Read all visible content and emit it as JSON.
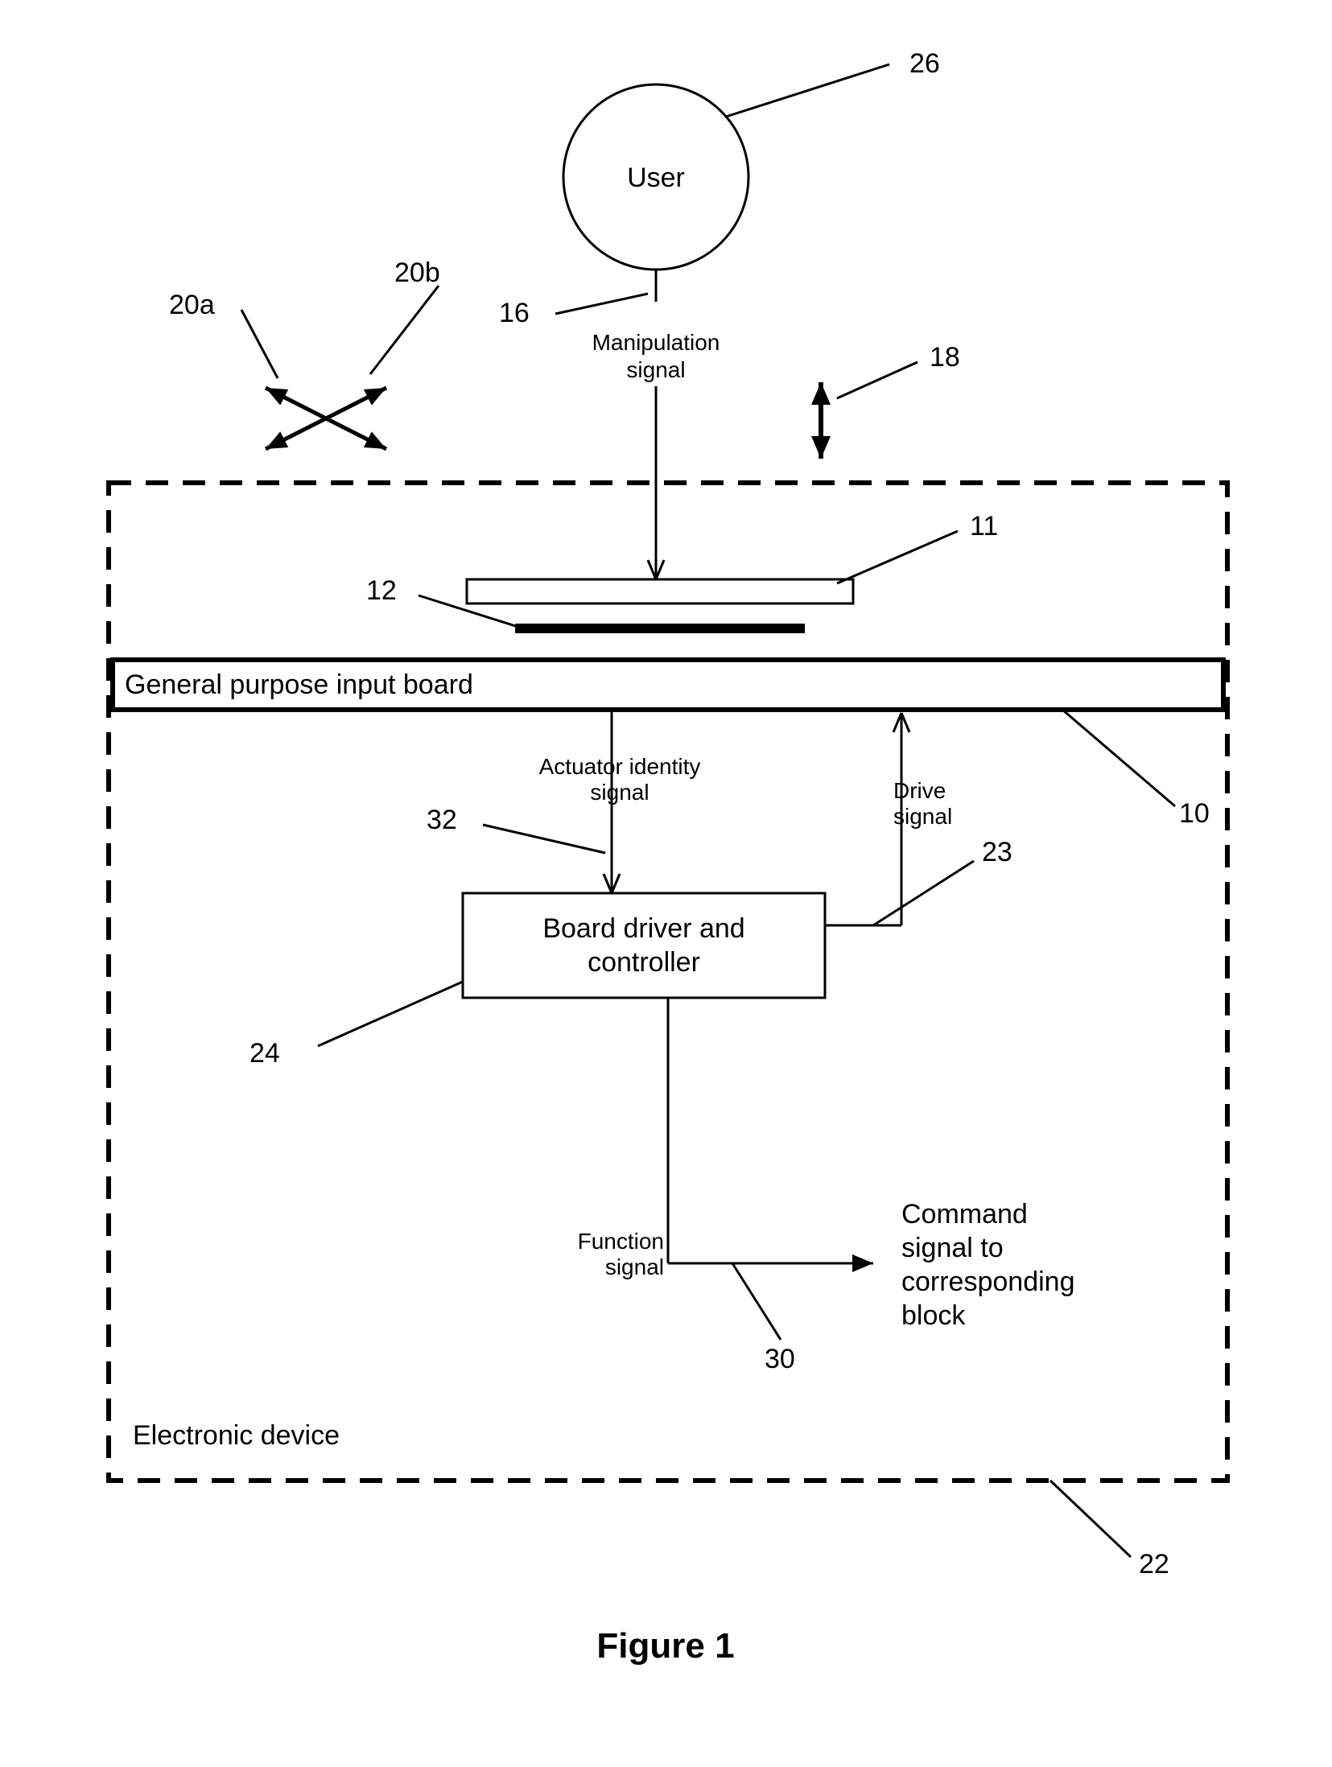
{
  "figure": {
    "title": "Figure 1",
    "title_fontsize": 44,
    "title_fontweight": "bold",
    "font_family": "Arial, Helvetica, sans-serif",
    "background": "#ffffff",
    "stroke": "#000000",
    "node_label_fontsize": 34,
    "edge_label_fontsize": 28,
    "ref_label_fontsize": 34
  },
  "nodes": {
    "user": {
      "label": "User",
      "ref": "26"
    },
    "board": {
      "label": "General purpose input board",
      "ref": "10"
    },
    "controller": {
      "label": "Board driver and controller",
      "ref": "24"
    },
    "device": {
      "label": "Electronic device",
      "ref": "22"
    },
    "command": {
      "label_lines": [
        "Command",
        "signal to",
        "corresponding",
        "block"
      ]
    }
  },
  "refs": {
    "r11": "11",
    "r12": "12",
    "r16": "16",
    "r18": "18",
    "r20a": "20a",
    "r20b": "20b",
    "r23": "23",
    "r30": "30",
    "r32": "32"
  },
  "edges": {
    "manipulation": {
      "label_lines": [
        "Manipulation",
        "signal"
      ]
    },
    "actuator": {
      "label_lines": [
        "Actuator identity",
        "signal"
      ]
    },
    "drive": {
      "label_lines": [
        "Drive",
        "signal"
      ]
    },
    "function": {
      "label_lines": [
        "Function",
        "signal"
      ]
    }
  },
  "style": {
    "line_width_thin": 3,
    "line_width_thick": 6,
    "dash_pattern": "28 18",
    "arrowhead_len": 22,
    "arrowhead_half": 9
  }
}
